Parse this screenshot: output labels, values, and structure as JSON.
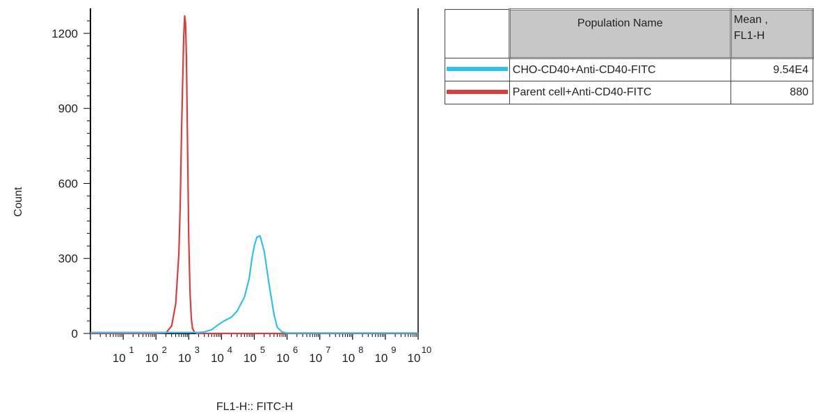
{
  "chart_data": {
    "type": "line",
    "title": "",
    "xlabel": "FL1-H:: FITC-H",
    "ylabel": "Count",
    "x_scale": "log",
    "xlim": [
      1,
      10000000000
    ],
    "ylim": [
      0,
      1300
    ],
    "y_ticks": [
      "0",
      "300",
      "600",
      "900",
      "1200"
    ],
    "x_ticks": [
      {
        "base": "10",
        "exp": "1"
      },
      {
        "base": "10",
        "exp": "2"
      },
      {
        "base": "10",
        "exp": "3"
      },
      {
        "base": "10",
        "exp": "4"
      },
      {
        "base": "10",
        "exp": "5"
      },
      {
        "base": "10",
        "exp": "6"
      },
      {
        "base": "10",
        "exp": "7"
      },
      {
        "base": "10",
        "exp": "8"
      },
      {
        "base": "10",
        "exp": "9"
      },
      {
        "base": "10",
        "exp": "10"
      }
    ],
    "series": [
      {
        "name": "Parent cell+Anti-CD40-FITC",
        "color": "#e03a3a",
        "x": [
          1,
          100,
          200,
          300,
          400,
          500,
          550,
          600,
          650,
          700,
          750,
          800,
          850,
          900,
          950,
          1000,
          1100,
          1200,
          1300,
          1500,
          1800,
          2500,
          10000,
          10000000000
        ],
        "y": [
          0,
          0,
          2,
          30,
          120,
          320,
          520,
          800,
          1000,
          1180,
          1270,
          1240,
          1100,
          850,
          600,
          380,
          160,
          60,
          20,
          5,
          0,
          0,
          0,
          0
        ]
      },
      {
        "name": "CHO-CD40+Anti-CD40-FITC",
        "color": "#2bc3e8",
        "x": [
          1,
          1000,
          2000,
          3000,
          5000,
          8000,
          12000,
          20000,
          30000,
          50000,
          70000,
          85000,
          100000,
          120000,
          150000,
          200000,
          280000,
          400000,
          500000,
          700000,
          1000000,
          10000000000
        ],
        "y": [
          4,
          4,
          4,
          6,
          15,
          35,
          50,
          65,
          90,
          145,
          220,
          300,
          350,
          385,
          390,
          330,
          200,
          75,
          25,
          6,
          2,
          2
        ]
      }
    ]
  },
  "legend_table": {
    "header_name": "Population Name",
    "header_mean": "Mean ,\nFL1-H",
    "rows": [
      {
        "name": "CHO-CD40+Anti-CD40-FITC",
        "mean": "9.54E4",
        "color": "#2bc3e8"
      },
      {
        "name": "Parent cell+Anti-CD40-FITC",
        "mean": "880",
        "color": "#e03a3a"
      }
    ]
  }
}
